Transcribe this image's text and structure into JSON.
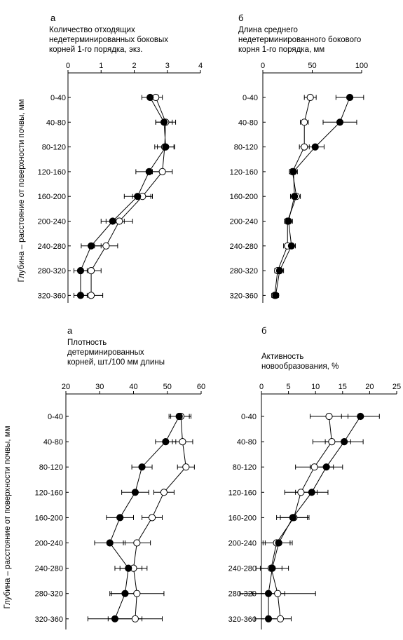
{
  "y_axis_label": "Глубина – расстояние от поверхности почвы, мм",
  "chart_data": [
    {
      "type": "scatter",
      "panel_letter": "а",
      "title_lines": [
        "Количество отходящих",
        "недетерминированных боковых",
        "корней 1-го порядка, экз."
      ],
      "x_axis": {
        "min": 0,
        "max": 4,
        "ticks": [
          0,
          1,
          2,
          3,
          4
        ],
        "position": "top"
      },
      "categories": [
        "0-40",
        "40-80",
        "80-120",
        "120-160",
        "160-200",
        "200-240",
        "240-280",
        "280-320",
        "320-360"
      ],
      "series": [
        {
          "marker": "filled",
          "values": [
            2.48,
            2.9,
            2.95,
            2.45,
            2.1,
            1.35,
            0.7,
            0.38,
            0.38
          ],
          "errors": [
            0.25,
            0.25,
            0.25,
            0.4,
            0.4,
            0.35,
            0.3,
            0.2,
            0.2
          ]
        },
        {
          "marker": "open",
          "values": [
            2.65,
            2.95,
            2.92,
            2.85,
            2.25,
            1.55,
            1.15,
            0.7,
            0.7
          ],
          "errors": [
            0.2,
            0.3,
            0.3,
            0.3,
            0.3,
            0.4,
            0.35,
            0.3,
            0.35
          ]
        }
      ]
    },
    {
      "type": "scatter",
      "panel_letter": "б",
      "title_lines": [
        "Длина среднего",
        "недетерминированного бокового",
        "корня 1-го порядка, мм"
      ],
      "x_axis": {
        "min": 0,
        "max": 100,
        "ticks": [
          0,
          50,
          100
        ],
        "position": "top"
      },
      "categories": [
        "0-40",
        "40-80",
        "80-120",
        "120-160",
        "160-200",
        "200-240",
        "240-280",
        "280-320",
        "320-360"
      ],
      "series": [
        {
          "marker": "filled",
          "values": [
            88,
            78,
            53,
            31,
            32,
            26,
            29,
            17,
            13
          ],
          "errors": [
            14,
            17,
            9,
            4,
            4,
            4,
            4,
            4,
            3
          ]
        },
        {
          "marker": "open",
          "values": [
            48,
            42,
            42,
            30,
            34,
            25,
            25,
            15,
            12
          ],
          "errors": [
            6,
            4,
            5,
            3,
            4,
            3,
            4,
            3,
            3
          ]
        }
      ]
    },
    {
      "type": "scatter",
      "panel_letter": "а",
      "title_lines": [
        "Плотность",
        "детерминированных",
        "корней, шт./100 мм длины"
      ],
      "x_axis": {
        "min": 20,
        "max": 60,
        "ticks": [
          20,
          30,
          40,
          50,
          60
        ],
        "position": "top"
      },
      "categories": [
        "0-40",
        "40-80",
        "80-120",
        "120-160",
        "160-200",
        "200-240",
        "240-280",
        "280-320",
        "320-360"
      ],
      "series": [
        {
          "marker": "filled",
          "values": [
            53.5,
            49.5,
            42.5,
            40.5,
            36,
            33,
            38.5,
            37.5,
            34.5
          ],
          "errors": [
            3,
            3,
            3,
            4,
            4,
            4.5,
            4,
            4,
            8
          ]
        },
        {
          "marker": "open",
          "values": [
            54,
            54.5,
            55.5,
            49,
            45.5,
            41,
            40,
            41,
            40.5
          ],
          "errors": [
            3,
            3,
            2.5,
            3,
            3,
            4,
            4,
            8,
            8
          ]
        }
      ]
    },
    {
      "type": "scatter",
      "panel_letter": "б",
      "title_lines": [
        "Активность",
        "новообразования, %"
      ],
      "x_axis": {
        "min": 0,
        "max": 25,
        "ticks": [
          0,
          5,
          10,
          15,
          20,
          25
        ],
        "position": "top"
      },
      "categories": [
        "0-40",
        "40-80",
        "80-120",
        "120-160",
        "160-200",
        "200-240",
        "240-280",
        "280-320",
        "320-360"
      ],
      "series": [
        {
          "marker": "filled",
          "values": [
            18.3,
            15.3,
            12,
            9.3,
            5.8,
            3.2,
            2,
            1.3,
            1.3
          ],
          "errors": [
            3.5,
            3.5,
            3,
            3,
            3,
            2.5,
            3,
            3,
            2.5
          ]
        },
        {
          "marker": "open",
          "values": [
            12.5,
            13,
            9.8,
            7.3,
            6,
            2.8,
            1.8,
            3,
            3.5
          ],
          "errors": [
            3.5,
            3.5,
            3.5,
            3,
            2.5,
            2.5,
            2,
            7,
            2
          ]
        }
      ]
    }
  ]
}
